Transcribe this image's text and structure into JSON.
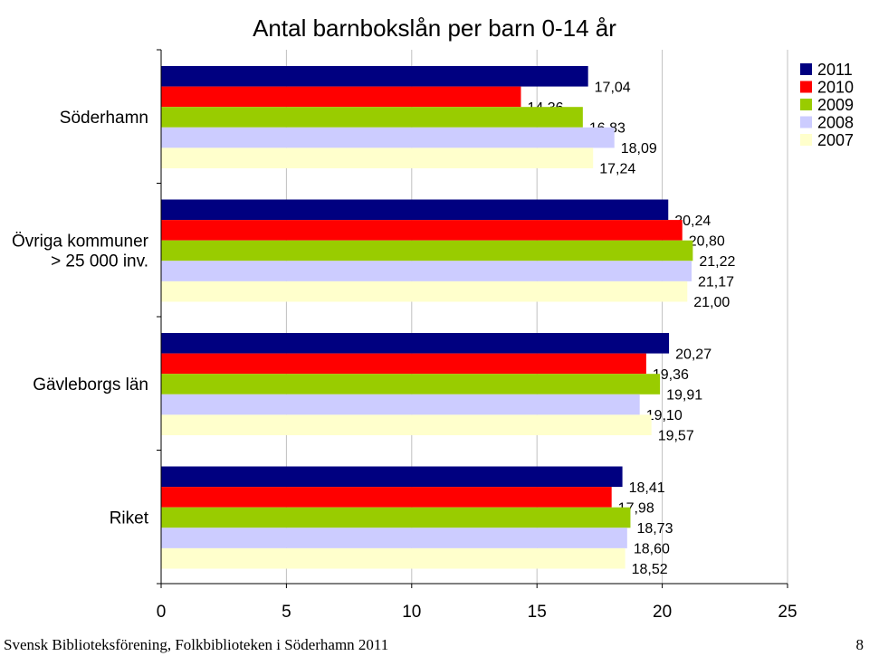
{
  "chart_data": {
    "type": "bar",
    "orientation": "horizontal",
    "title": "Antal barnbokslån per barn 0-14 år",
    "categories": [
      "Söderhamn",
      "Övriga kommuner\n> 25 000 inv.",
      "Gävleborgs län",
      "Riket"
    ],
    "series": [
      {
        "name": "2011",
        "color": "#000080",
        "values": [
          17.04,
          20.24,
          20.27,
          18.41
        ],
        "labels": [
          "17,04",
          "20,24",
          "20,27",
          "18,41"
        ]
      },
      {
        "name": "2010",
        "color": "#ff0000",
        "values": [
          14.36,
          20.8,
          19.36,
          17.98
        ],
        "labels": [
          "14,36",
          "20,80",
          "19,36",
          "17,98"
        ]
      },
      {
        "name": "2009",
        "color": "#99cc00",
        "values": [
          16.83,
          21.22,
          19.91,
          18.73
        ],
        "labels": [
          "16,83",
          "21,22",
          "19,91",
          "18,73"
        ]
      },
      {
        "name": "2008",
        "color": "#ccccff",
        "values": [
          18.09,
          21.17,
          19.1,
          18.6
        ],
        "labels": [
          "18,09",
          "21,17",
          "19,10",
          "18,60"
        ]
      },
      {
        "name": "2007",
        "color": "#ffffcc",
        "values": [
          17.24,
          21.0,
          19.57,
          18.52
        ],
        "labels": [
          "17,24",
          "21,00",
          "19,57",
          "18,52"
        ]
      }
    ],
    "xlim": [
      0,
      25
    ],
    "xticks": [
      "0",
      "5",
      "10",
      "15",
      "20",
      "25"
    ],
    "grid": true,
    "legend": "top-right"
  },
  "footer": {
    "left": "Svensk Biblioteksförening, Folkbiblioteken i Söderhamn 2011",
    "page": "8"
  }
}
